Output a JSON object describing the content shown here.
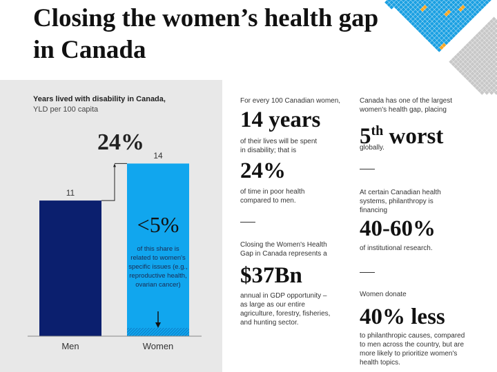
{
  "title": "Closing the women’s health gap in Canada",
  "chart_data": {
    "type": "bar",
    "title": "Years lived with disability in Canada,",
    "subtitle": "YLD per 100 capita",
    "categories": [
      "Men",
      "Women"
    ],
    "values": [
      11,
      14
    ],
    "value_labels": [
      "11",
      "14"
    ],
    "colors": [
      "#0b1f6e",
      "#11a6ee"
    ],
    "difference_label": "24%",
    "annotation": {
      "value": "<5%",
      "text": "of this share is related to women's specific issues (e.g., reproductive health, ovarian cancer)"
    }
  },
  "stats": {
    "s1": {
      "intro": "For every 100 Canadian women,",
      "value": "14 years",
      "outro": "of their lives will be spent in disability; that is"
    },
    "s2": {
      "value": "24%",
      "outro": "of time in poor health compared to men."
    },
    "s3": {
      "intro": "Closing the Women's Health Gap in Canada represents a",
      "value": "$37Bn",
      "outro": "annual in GDP opportunity – as large as our entire agriculture, forestry, fisheries, and hunting sector."
    },
    "s4": {
      "intro": "Canada has one of the largest women's health gap, placing",
      "value_num": "5",
      "value_sup": "th",
      "value_rest": " worst",
      "outro": "globally."
    },
    "s5": {
      "intro": "At certain Canadian health systems, philanthropy is financing",
      "value": "40-60%",
      "outro": "of institutional research."
    },
    "s6": {
      "intro": "Women donate",
      "value": "40% less",
      "outro": "to philanthropic causes, compared to men across the country, but are more likely to prioritize women's health topics."
    }
  },
  "colors": {
    "blue_diamond": "#1ba0e2",
    "orange_diamond": "#f5a623",
    "gray_diamond": "#c8c8c8",
    "panel": "#e8e8e8"
  }
}
